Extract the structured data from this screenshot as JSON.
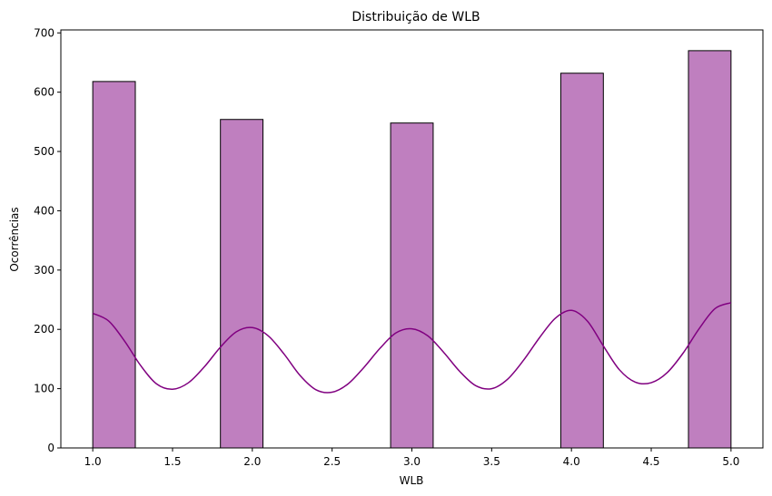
{
  "chart_data": {
    "type": "bar",
    "title": "Distribuição de WLB",
    "xlabel": "WLB",
    "ylabel": "Ocorrências",
    "xlim": [
      0.8,
      5.2
    ],
    "ylim": [
      0,
      705
    ],
    "xticks": [
      "1.0",
      "1.5",
      "2.0",
      "2.5",
      "3.0",
      "3.5",
      "4.0",
      "4.5",
      "5.0"
    ],
    "yticks": [
      "0",
      "100",
      "200",
      "300",
      "400",
      "500",
      "600",
      "700"
    ],
    "bin_width": 0.2667,
    "bars": [
      {
        "x0": 1.0,
        "value": 618
      },
      {
        "x0": 1.8,
        "value": 554
      },
      {
        "x0": 2.8667,
        "value": 548
      },
      {
        "x0": 3.9333,
        "value": 632
      },
      {
        "x0": 4.7333,
        "value": 670
      }
    ],
    "kde": {
      "x": [
        1.0,
        1.1,
        1.2,
        1.3,
        1.4,
        1.5,
        1.6,
        1.7,
        1.8,
        1.9,
        2.0,
        2.1,
        2.2,
        2.3,
        2.4,
        2.5,
        2.6,
        2.7,
        2.8,
        2.9,
        3.0,
        3.1,
        3.2,
        3.3,
        3.4,
        3.5,
        3.6,
        3.7,
        3.8,
        3.9,
        4.0,
        4.1,
        4.2,
        4.3,
        4.4,
        4.5,
        4.6,
        4.7,
        4.8,
        4.9,
        5.0
      ],
      "y": [
        227,
        214,
        180,
        139,
        108,
        99,
        110,
        137,
        170,
        196,
        203,
        189,
        158,
        122,
        98,
        94,
        108,
        136,
        168,
        194,
        201,
        189,
        161,
        129,
        105,
        100,
        116,
        148,
        186,
        219,
        232,
        214,
        172,
        132,
        111,
        110,
        127,
        160,
        201,
        235,
        245
      ]
    },
    "colors": {
      "bar_fill": "#bf7fbf",
      "bar_edge": "#000000",
      "kde_line": "#800080"
    },
    "grid": false
  }
}
